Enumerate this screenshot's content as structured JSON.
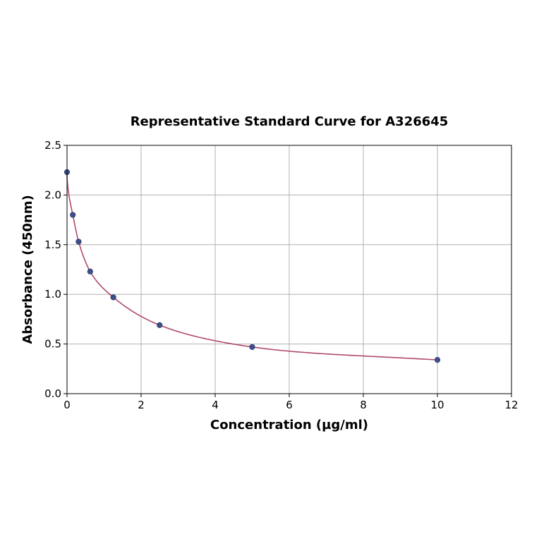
{
  "chart_data": {
    "type": "scatter",
    "title": "Representative Standard Curve for A326645",
    "xlabel": "Concentration (µg/ml)",
    "ylabel": "Absorbance (450nm)",
    "xlim": [
      0,
      12
    ],
    "ylim": [
      0,
      2.5
    ],
    "x_ticks": [
      "0",
      "2",
      "4",
      "6",
      "8",
      "10",
      "12"
    ],
    "y_ticks": [
      "0.0",
      "0.5",
      "1.0",
      "1.5",
      "2.0",
      "2.5"
    ],
    "grid": true,
    "colors": {
      "points": "#3d4f8a",
      "curve": "#b04a6a"
    },
    "series": [
      {
        "x": [
          0,
          0.156,
          0.313,
          0.625,
          1.25,
          2.5,
          5,
          10
        ],
        "y": [
          2.23,
          1.8,
          1.53,
          1.23,
          0.97,
          0.69,
          0.47,
          0.34
        ]
      }
    ]
  }
}
